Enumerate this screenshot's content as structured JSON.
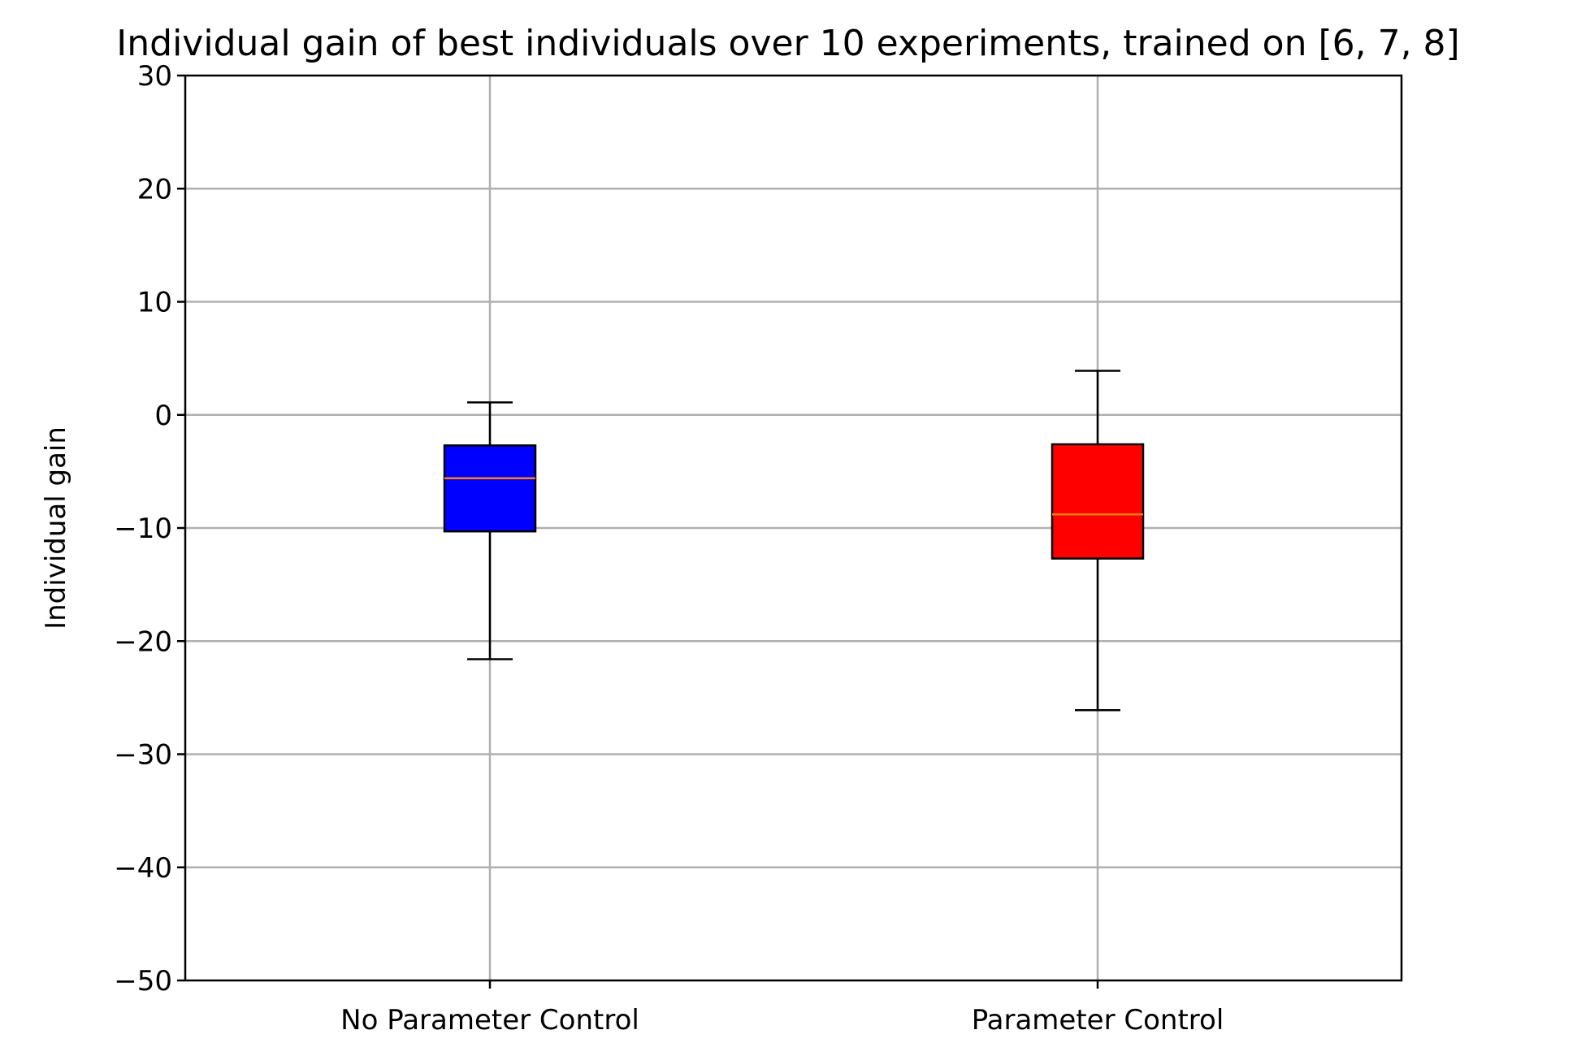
{
  "chart_data": {
    "type": "box",
    "title": "Individual gain of best individuals over 10 experiments, trained on [6, 7, 8]",
    "xlabel": "",
    "ylabel": "Individual gain",
    "ylim": [
      -50,
      30
    ],
    "yticks": [
      -50,
      -40,
      -30,
      -20,
      -10,
      0,
      10,
      20,
      30
    ],
    "ytick_labels": [
      "−50",
      "−40",
      "−30",
      "−20",
      "−10",
      "0",
      "10",
      "20",
      "30"
    ],
    "grid": true,
    "categories": [
      "No Parameter Control",
      "Parameter Control"
    ],
    "series": [
      {
        "category": "No Parameter Control",
        "color": "#0000ff",
        "whisker_low": -21.6,
        "q1": -10.3,
        "median": -5.6,
        "q3": -2.7,
        "whisker_high": 1.1
      },
      {
        "category": "Parameter Control",
        "color": "#ff0000",
        "whisker_low": -26.1,
        "q1": -12.7,
        "median": -8.8,
        "q3": -2.6,
        "whisker_high": 3.9
      }
    ],
    "median_color": "#ff7f0e"
  }
}
